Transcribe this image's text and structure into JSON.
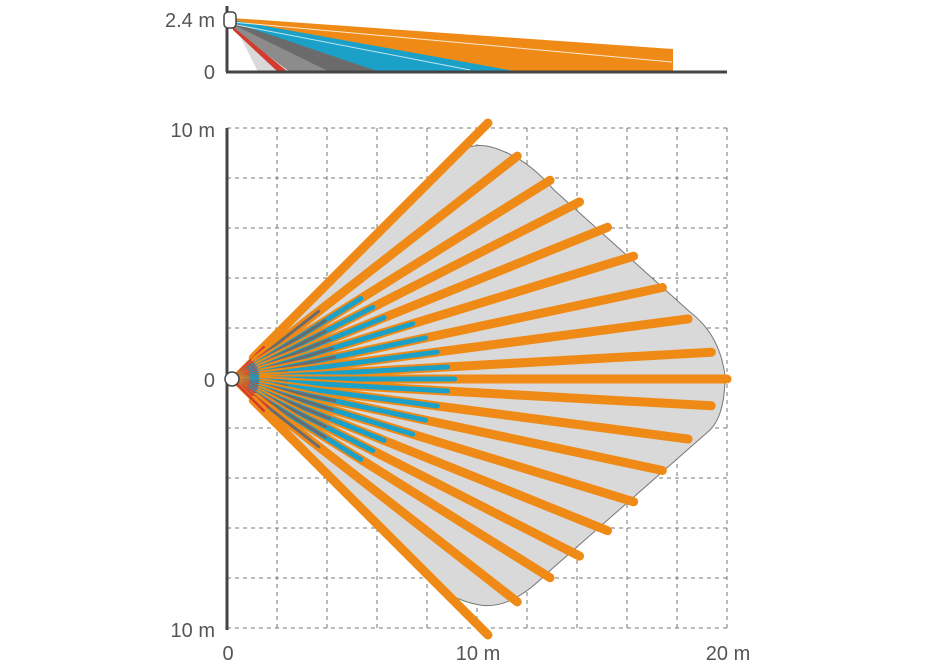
{
  "side_view": {
    "height_label": "2.4 m",
    "floor_label": "0"
  },
  "top_view": {
    "y_top_label": "10 m",
    "y_mid_label": "0",
    "y_bottom_label": "10 m",
    "x_labels": [
      "0",
      "10 m",
      "20 m"
    ]
  },
  "colors": {
    "orange": "#ef8a17",
    "blue": "#1ba1c8",
    "dark_gray": "#6b6b6b",
    "red": "#d43b2e",
    "coverage_fill": "#d9d9d9",
    "axis": "#444444",
    "grid": "#777777"
  },
  "chart_data": {
    "type": "detection-pattern",
    "max_range_m": 20,
    "mount_height_m": 2.4,
    "zones": [
      {
        "color": "orange",
        "reach_m": 20
      },
      {
        "color": "blue",
        "reach_m": 9
      },
      {
        "color": "dark_gray",
        "reach_m": 4.5
      },
      {
        "color": "red",
        "reach_m": 2
      }
    ]
  }
}
